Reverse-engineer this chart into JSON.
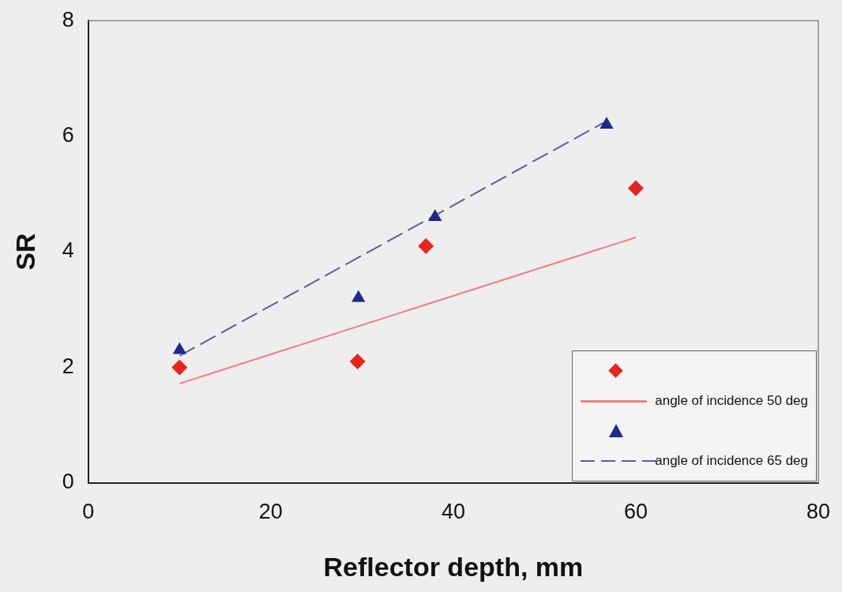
{
  "chart_data": {
    "type": "scatter",
    "xlabel": "Reflector depth, mm",
    "ylabel": "SR",
    "xlim": [
      0,
      80
    ],
    "xticks": [
      0,
      20,
      40,
      60,
      80
    ],
    "ylim": [
      0,
      8
    ],
    "yticks": [
      0,
      2,
      4,
      6,
      8
    ],
    "grid": false,
    "legend": "bottom right",
    "series": [
      {
        "color": "#e8231c",
        "marker": "diamond",
        "x": [
          10,
          29.5,
          37,
          60
        ],
        "values": [
          2.0,
          2.1,
          4.1,
          5.1
        ]
      },
      {
        "type": "line",
        "name": "angle of incidence 50 deg",
        "color": "#f08080",
        "line_style": "solid",
        "x": [
          10,
          60
        ],
        "values": [
          1.72,
          4.25
        ]
      },
      {
        "color": "#1f2a8a",
        "marker": "triangle",
        "x": [
          10,
          29.6,
          38,
          56.8
        ],
        "values": [
          2.3,
          3.2,
          4.6,
          6.2
        ]
      },
      {
        "type": "line",
        "name": "angle of incidence 65 deg",
        "color": "#5a5f9a",
        "line_style": "dashed",
        "x": [
          10,
          57
        ],
        "values": [
          2.2,
          6.28
        ]
      }
    ]
  }
}
